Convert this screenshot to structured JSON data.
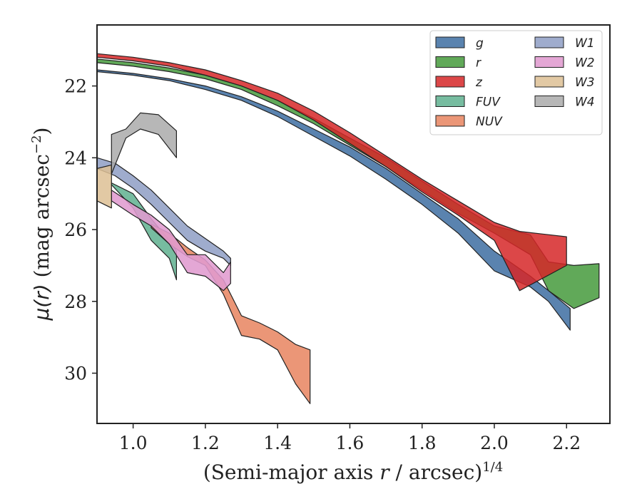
{
  "chart_data": {
    "type": "area",
    "xlabel": "(Semi-major axis r / arcsec)^1/4",
    "ylabel": "μ(r) (mag arcsec⁻²)",
    "x_ticks": [
      "1.0",
      "1.2",
      "1.4",
      "1.6",
      "1.8",
      "2.0",
      "2.2"
    ],
    "y_ticks": [
      "22",
      "24",
      "26",
      "28",
      "30"
    ],
    "xlim": [
      0.9,
      2.32
    ],
    "ylim": [
      31.4,
      20.3
    ],
    "y_inverted": true,
    "grid": false,
    "legend_position": "top-right",
    "legend_columns": 2,
    "series": [
      {
        "name": "g",
        "color": "#4c78a8",
        "opacity": 0.92,
        "x": [
          0.9,
          1.0,
          1.1,
          1.2,
          1.3,
          1.4,
          1.5,
          1.6,
          1.7,
          1.8,
          1.9,
          2.0,
          2.1,
          2.15,
          2.21
        ],
        "y_low": [
          21.55,
          21.65,
          21.8,
          22.0,
          22.3,
          22.7,
          23.2,
          23.7,
          24.3,
          25.0,
          25.7,
          26.6,
          27.3,
          27.7,
          28.2
        ],
        "y_high": [
          21.6,
          21.7,
          21.85,
          22.1,
          22.4,
          22.85,
          23.4,
          23.95,
          24.6,
          25.3,
          26.1,
          27.15,
          27.6,
          28.0,
          28.8
        ]
      },
      {
        "name": "r",
        "color": "#54a24b",
        "opacity": 0.92,
        "x": [
          0.9,
          1.0,
          1.1,
          1.2,
          1.3,
          1.4,
          1.5,
          1.6,
          1.7,
          1.8,
          1.9,
          2.0,
          2.1,
          2.15,
          2.22,
          2.29
        ],
        "y_low": [
          21.25,
          21.35,
          21.5,
          21.7,
          22.0,
          22.4,
          22.9,
          23.45,
          24.0,
          24.65,
          25.3,
          25.9,
          26.15,
          26.9,
          27.0,
          26.95
        ],
        "y_high": [
          21.35,
          21.45,
          21.6,
          21.8,
          22.1,
          22.55,
          23.05,
          23.65,
          24.25,
          24.9,
          25.55,
          26.1,
          26.7,
          27.7,
          28.2,
          27.9
        ]
      },
      {
        "name": "z",
        "color": "#d62728",
        "opacity": 0.85,
        "x": [
          0.9,
          1.0,
          1.1,
          1.2,
          1.3,
          1.4,
          1.5,
          1.6,
          1.7,
          1.8,
          1.9,
          2.0,
          2.07,
          2.2
        ],
        "y_low": [
          21.1,
          21.2,
          21.35,
          21.55,
          21.85,
          22.2,
          22.7,
          23.3,
          23.95,
          24.6,
          25.2,
          25.8,
          26.05,
          26.2
        ],
        "y_high": [
          21.2,
          21.3,
          21.45,
          21.7,
          22.0,
          22.4,
          22.95,
          23.6,
          24.25,
          24.95,
          25.6,
          26.3,
          27.7,
          27.0
        ]
      },
      {
        "name": "FUV",
        "color": "#5fb08f",
        "opacity": 0.85,
        "x": [
          0.94,
          1.0,
          1.05,
          1.1,
          1.12
        ],
        "y_low": [
          24.7,
          25.0,
          25.7,
          26.3,
          26.6
        ],
        "y_high": [
          24.75,
          25.4,
          26.3,
          26.8,
          27.4
        ]
      },
      {
        "name": "NUV",
        "color": "#e8845f",
        "opacity": 0.85,
        "x": [
          1.05,
          1.1,
          1.15,
          1.2,
          1.25,
          1.3,
          1.35,
          1.4,
          1.45,
          1.49
        ],
        "y_low": [
          25.85,
          26.1,
          26.5,
          26.85,
          27.4,
          28.4,
          28.6,
          28.85,
          29.2,
          29.35
        ],
        "y_high": [
          25.95,
          26.4,
          26.75,
          27.0,
          27.8,
          28.95,
          29.05,
          29.35,
          30.3,
          30.85
        ]
      },
      {
        "name": "W1",
        "color": "#8e9dc4",
        "opacity": 0.85,
        "x": [
          0.9,
          0.95,
          1.0,
          1.05,
          1.1,
          1.15,
          1.2,
          1.25,
          1.27
        ],
        "y_low": [
          24.0,
          24.15,
          24.5,
          24.9,
          25.4,
          25.9,
          26.25,
          26.6,
          26.8
        ],
        "y_high": [
          24.3,
          24.5,
          24.85,
          25.3,
          25.8,
          26.3,
          26.6,
          26.8,
          27.0
        ]
      },
      {
        "name": "W2",
        "color": "#e09bcf",
        "opacity": 0.88,
        "x": [
          0.94,
          1.0,
          1.05,
          1.1,
          1.15,
          1.2,
          1.25,
          1.27
        ],
        "y_low": [
          24.9,
          25.3,
          25.6,
          26.0,
          26.7,
          26.7,
          27.2,
          26.9
        ],
        "y_high": [
          25.2,
          25.6,
          25.9,
          26.4,
          27.2,
          27.3,
          27.7,
          27.5
        ]
      },
      {
        "name": "W3",
        "color": "#ddbf94",
        "opacity": 0.85,
        "x": [
          0.9,
          0.94
        ],
        "y_low": [
          24.3,
          24.2
        ],
        "y_high": [
          25.2,
          25.4
        ]
      },
      {
        "name": "W4",
        "color": "#aaaaaa",
        "opacity": 0.85,
        "x": [
          0.94,
          0.98,
          1.02,
          1.07,
          1.12
        ],
        "y_low": [
          23.35,
          23.2,
          22.75,
          22.8,
          23.25
        ],
        "y_high": [
          24.45,
          23.45,
          23.2,
          23.35,
          24.0
        ]
      }
    ]
  }
}
